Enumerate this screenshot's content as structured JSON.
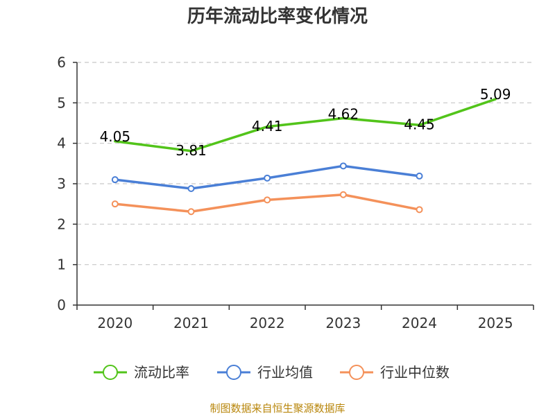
{
  "chart_data": {
    "type": "line",
    "title": "历年流动比率变化情况",
    "categories": [
      "2020",
      "2021",
      "2022",
      "2023",
      "2024",
      "2025"
    ],
    "y_ticks": [
      "0",
      "1",
      "2",
      "3",
      "4",
      "5",
      "6"
    ],
    "ylim": [
      0,
      6
    ],
    "grid": true,
    "legend_position": "bottom",
    "series": [
      {
        "name": "流动比率",
        "color": "#52c41a",
        "values": [
          4.05,
          3.81,
          4.41,
          4.62,
          4.45,
          5.09
        ],
        "labels": [
          "4.05",
          "3.81",
          "4.41",
          "4.62",
          "4.45",
          "5.09"
        ],
        "show_markers": false
      },
      {
        "name": "行业均值",
        "color": "#4a7fd6",
        "values": [
          3.1,
          2.88,
          3.14,
          3.44,
          3.19,
          null
        ],
        "show_markers": true
      },
      {
        "name": "行业中位数",
        "color": "#f4915a",
        "values": [
          2.5,
          2.31,
          2.6,
          2.73,
          2.36,
          null
        ],
        "show_markers": true
      }
    ],
    "source": "制图数据来自恒生聚源数据库"
  }
}
